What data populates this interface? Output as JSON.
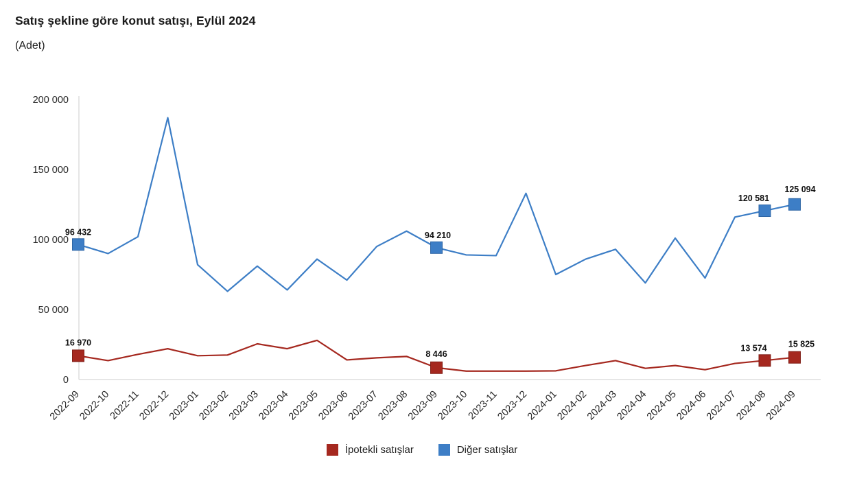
{
  "header": {
    "title": "Satış şekline göre konut satışı, Eylül 2024",
    "subtitle": "(Adet)"
  },
  "legend": {
    "items": [
      {
        "label": "İpotekli satışlar",
        "color": "#a5281f"
      },
      {
        "label": "Diğer satışlar",
        "color": "#3d7ec6"
      }
    ]
  },
  "chart_data": {
    "type": "line",
    "title": "Satış şekline göre konut satışı, Eylül 2024",
    "xlabel": "",
    "ylabel": "(Adet)",
    "grid": false,
    "legend_position": "bottom",
    "ylim": [
      0,
      200000
    ],
    "yticks": [
      {
        "value": 0,
        "label": "0"
      },
      {
        "value": 50000,
        "label": "50 000"
      },
      {
        "value": 100000,
        "label": "100 000"
      },
      {
        "value": 150000,
        "label": "150 000"
      },
      {
        "value": 200000,
        "label": "200 000"
      }
    ],
    "categories": [
      "2022-09",
      "2022-10",
      "2022-11",
      "2022-12",
      "2023-01",
      "2023-02",
      "2023-03",
      "2023-04",
      "2023-05",
      "2023-06",
      "2023-07",
      "2023-08",
      "2023-09",
      "2023-10",
      "2023-11",
      "2023-12",
      "2024-01",
      "2024-02",
      "2024-03",
      "2024-04",
      "2024-05",
      "2024-06",
      "2024-07",
      "2024-08",
      "2024-09"
    ],
    "series": [
      {
        "name": "İpotekli satışlar",
        "color": "#a5281f",
        "border": "#801d15",
        "values": [
          16970,
          13500,
          18000,
          22000,
          17000,
          17500,
          25500,
          22000,
          28000,
          14000,
          15500,
          16500,
          8446,
          6000,
          6000,
          6000,
          6200,
          10000,
          13500,
          8000,
          10000,
          7000,
          11500,
          13574,
          15825
        ],
        "labeled_points": [
          {
            "index": 0,
            "label": "16 970",
            "dx": 0,
            "dy": -15
          },
          {
            "index": 12,
            "label": "8 446",
            "dx": 0,
            "dy": -16
          },
          {
            "index": 23,
            "label": "13 574",
            "dx": -16,
            "dy": -14
          },
          {
            "index": 24,
            "label": "15 825",
            "dx": 10,
            "dy": -15
          }
        ]
      },
      {
        "name": "Diğer satışlar",
        "color": "#3d7ec6",
        "border": "#2e66a5",
        "values": [
          96432,
          90000,
          102000,
          187000,
          82000,
          63000,
          81000,
          64000,
          86000,
          71000,
          95000,
          106000,
          94210,
          89000,
          88500,
          133000,
          75000,
          86000,
          93000,
          69000,
          101000,
          72500,
          116000,
          120581,
          125094
        ],
        "labeled_points": [
          {
            "index": 0,
            "label": "96 432",
            "dx": 0,
            "dy": -14
          },
          {
            "index": 12,
            "label": "94 210",
            "dx": 2,
            "dy": -14
          },
          {
            "index": 23,
            "label": "120 581",
            "dx": -16,
            "dy": -14
          },
          {
            "index": 24,
            "label": "125 094",
            "dx": 8,
            "dy": -18
          }
        ]
      }
    ]
  }
}
